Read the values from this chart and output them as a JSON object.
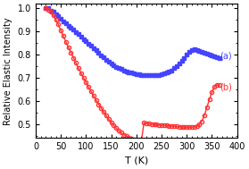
{
  "title": "",
  "xlabel": "T (K)",
  "ylabel": "Relative Elastic Intensity",
  "xlim": [
    0,
    400
  ],
  "ylim": [
    0.44,
    1.02
  ],
  "yticks": [
    0.5,
    0.6,
    0.7,
    0.8,
    0.9,
    1.0
  ],
  "xticks": [
    0,
    50,
    100,
    150,
    200,
    250,
    300,
    350,
    400
  ],
  "color_a": "#4444FF",
  "color_b": "#FF3333",
  "label_a": "(a)",
  "label_b": "(b)",
  "series_a_T": [
    20,
    25,
    30,
    35,
    40,
    45,
    50,
    55,
    60,
    65,
    70,
    75,
    80,
    85,
    90,
    95,
    100,
    105,
    110,
    115,
    120,
    125,
    130,
    135,
    140,
    145,
    150,
    155,
    160,
    165,
    170,
    175,
    180,
    185,
    190,
    195,
    200,
    205,
    210,
    215,
    220,
    225,
    230,
    235,
    240,
    245,
    250,
    255,
    260,
    265,
    270,
    275,
    280,
    285,
    290,
    295,
    300,
    305,
    310,
    315,
    320,
    325,
    330,
    335,
    340,
    345,
    350,
    355,
    360,
    365
  ],
  "series_a_I": [
    1.0,
    1.0,
    0.99,
    0.985,
    0.975,
    0.965,
    0.955,
    0.945,
    0.935,
    0.925,
    0.915,
    0.907,
    0.897,
    0.888,
    0.878,
    0.868,
    0.858,
    0.848,
    0.838,
    0.828,
    0.818,
    0.808,
    0.798,
    0.788,
    0.779,
    0.77,
    0.762,
    0.754,
    0.748,
    0.742,
    0.737,
    0.733,
    0.729,
    0.725,
    0.722,
    0.719,
    0.716,
    0.714,
    0.712,
    0.711,
    0.71,
    0.71,
    0.71,
    0.71,
    0.711,
    0.713,
    0.715,
    0.718,
    0.722,
    0.727,
    0.733,
    0.742,
    0.752,
    0.763,
    0.774,
    0.785,
    0.8,
    0.812,
    0.82,
    0.822,
    0.82,
    0.817,
    0.813,
    0.809,
    0.805,
    0.8,
    0.796,
    0.793,
    0.79,
    0.787
  ],
  "series_b_T": [
    20,
    25,
    30,
    35,
    40,
    45,
    50,
    55,
    60,
    65,
    70,
    75,
    80,
    85,
    90,
    95,
    100,
    105,
    110,
    115,
    120,
    125,
    130,
    135,
    140,
    145,
    150,
    155,
    160,
    165,
    170,
    175,
    180,
    185,
    190,
    195,
    200,
    205,
    210,
    215,
    220,
    225,
    230,
    235,
    240,
    245,
    250,
    255,
    260,
    265,
    270,
    275,
    280,
    285,
    290,
    295,
    300,
    305,
    310,
    315,
    320,
    325,
    330,
    335,
    340,
    345,
    350,
    355,
    360,
    365
  ],
  "series_b_I": [
    1.0,
    0.995,
    0.985,
    0.97,
    0.952,
    0.93,
    0.905,
    0.88,
    0.855,
    0.832,
    0.81,
    0.787,
    0.764,
    0.742,
    0.72,
    0.7,
    0.68,
    0.66,
    0.641,
    0.622,
    0.604,
    0.586,
    0.569,
    0.553,
    0.537,
    0.522,
    0.508,
    0.495,
    0.483,
    0.472,
    0.463,
    0.455,
    0.448,
    0.442,
    0.437,
    0.433,
    0.43,
    0.428,
    0.426,
    0.506,
    0.504,
    0.502,
    0.5,
    0.499,
    0.498,
    0.497,
    0.496,
    0.495,
    0.494,
    0.493,
    0.492,
    0.491,
    0.49,
    0.489,
    0.488,
    0.488,
    0.487,
    0.487,
    0.487,
    0.488,
    0.49,
    0.498,
    0.513,
    0.538,
    0.572,
    0.607,
    0.638,
    0.66,
    0.67,
    0.668
  ]
}
